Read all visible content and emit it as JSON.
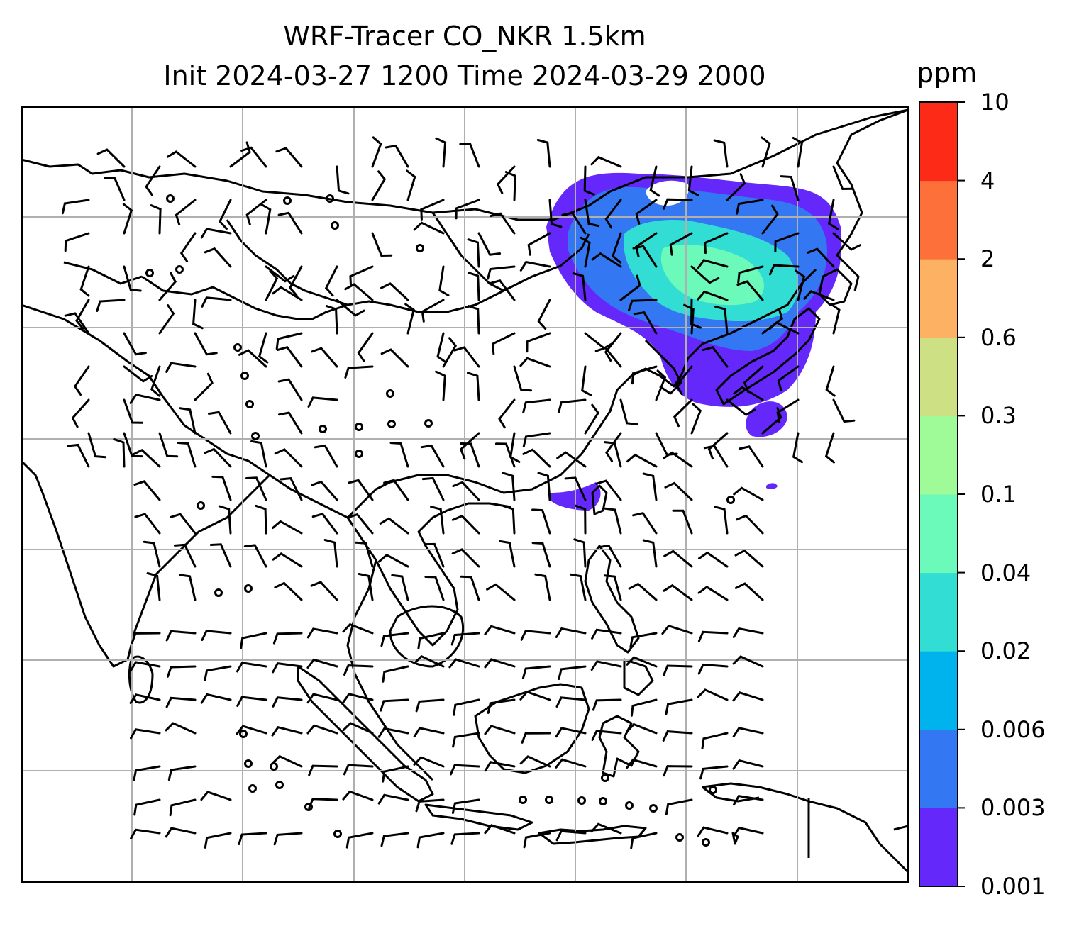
{
  "title_line1": "WRF-Tracer CO_NKR 1.5km",
  "title_line2": "Init 2024-03-27 1200 Time 2024-03-29 2000",
  "colorbar": {
    "unit": "ppm",
    "levels": [
      "0.001",
      "0.003",
      "0.006",
      "0.02",
      "0.04",
      "0.1",
      "0.3",
      "0.6",
      "2",
      "4",
      "10"
    ],
    "colors": [
      "#6429fa",
      "#3377f2",
      "#00b3ec",
      "#32ddd4",
      "#6bfab9",
      "#9ffb97",
      "#cde184",
      "#fdb263",
      "#fd7039",
      "#fd2a17"
    ]
  }
}
